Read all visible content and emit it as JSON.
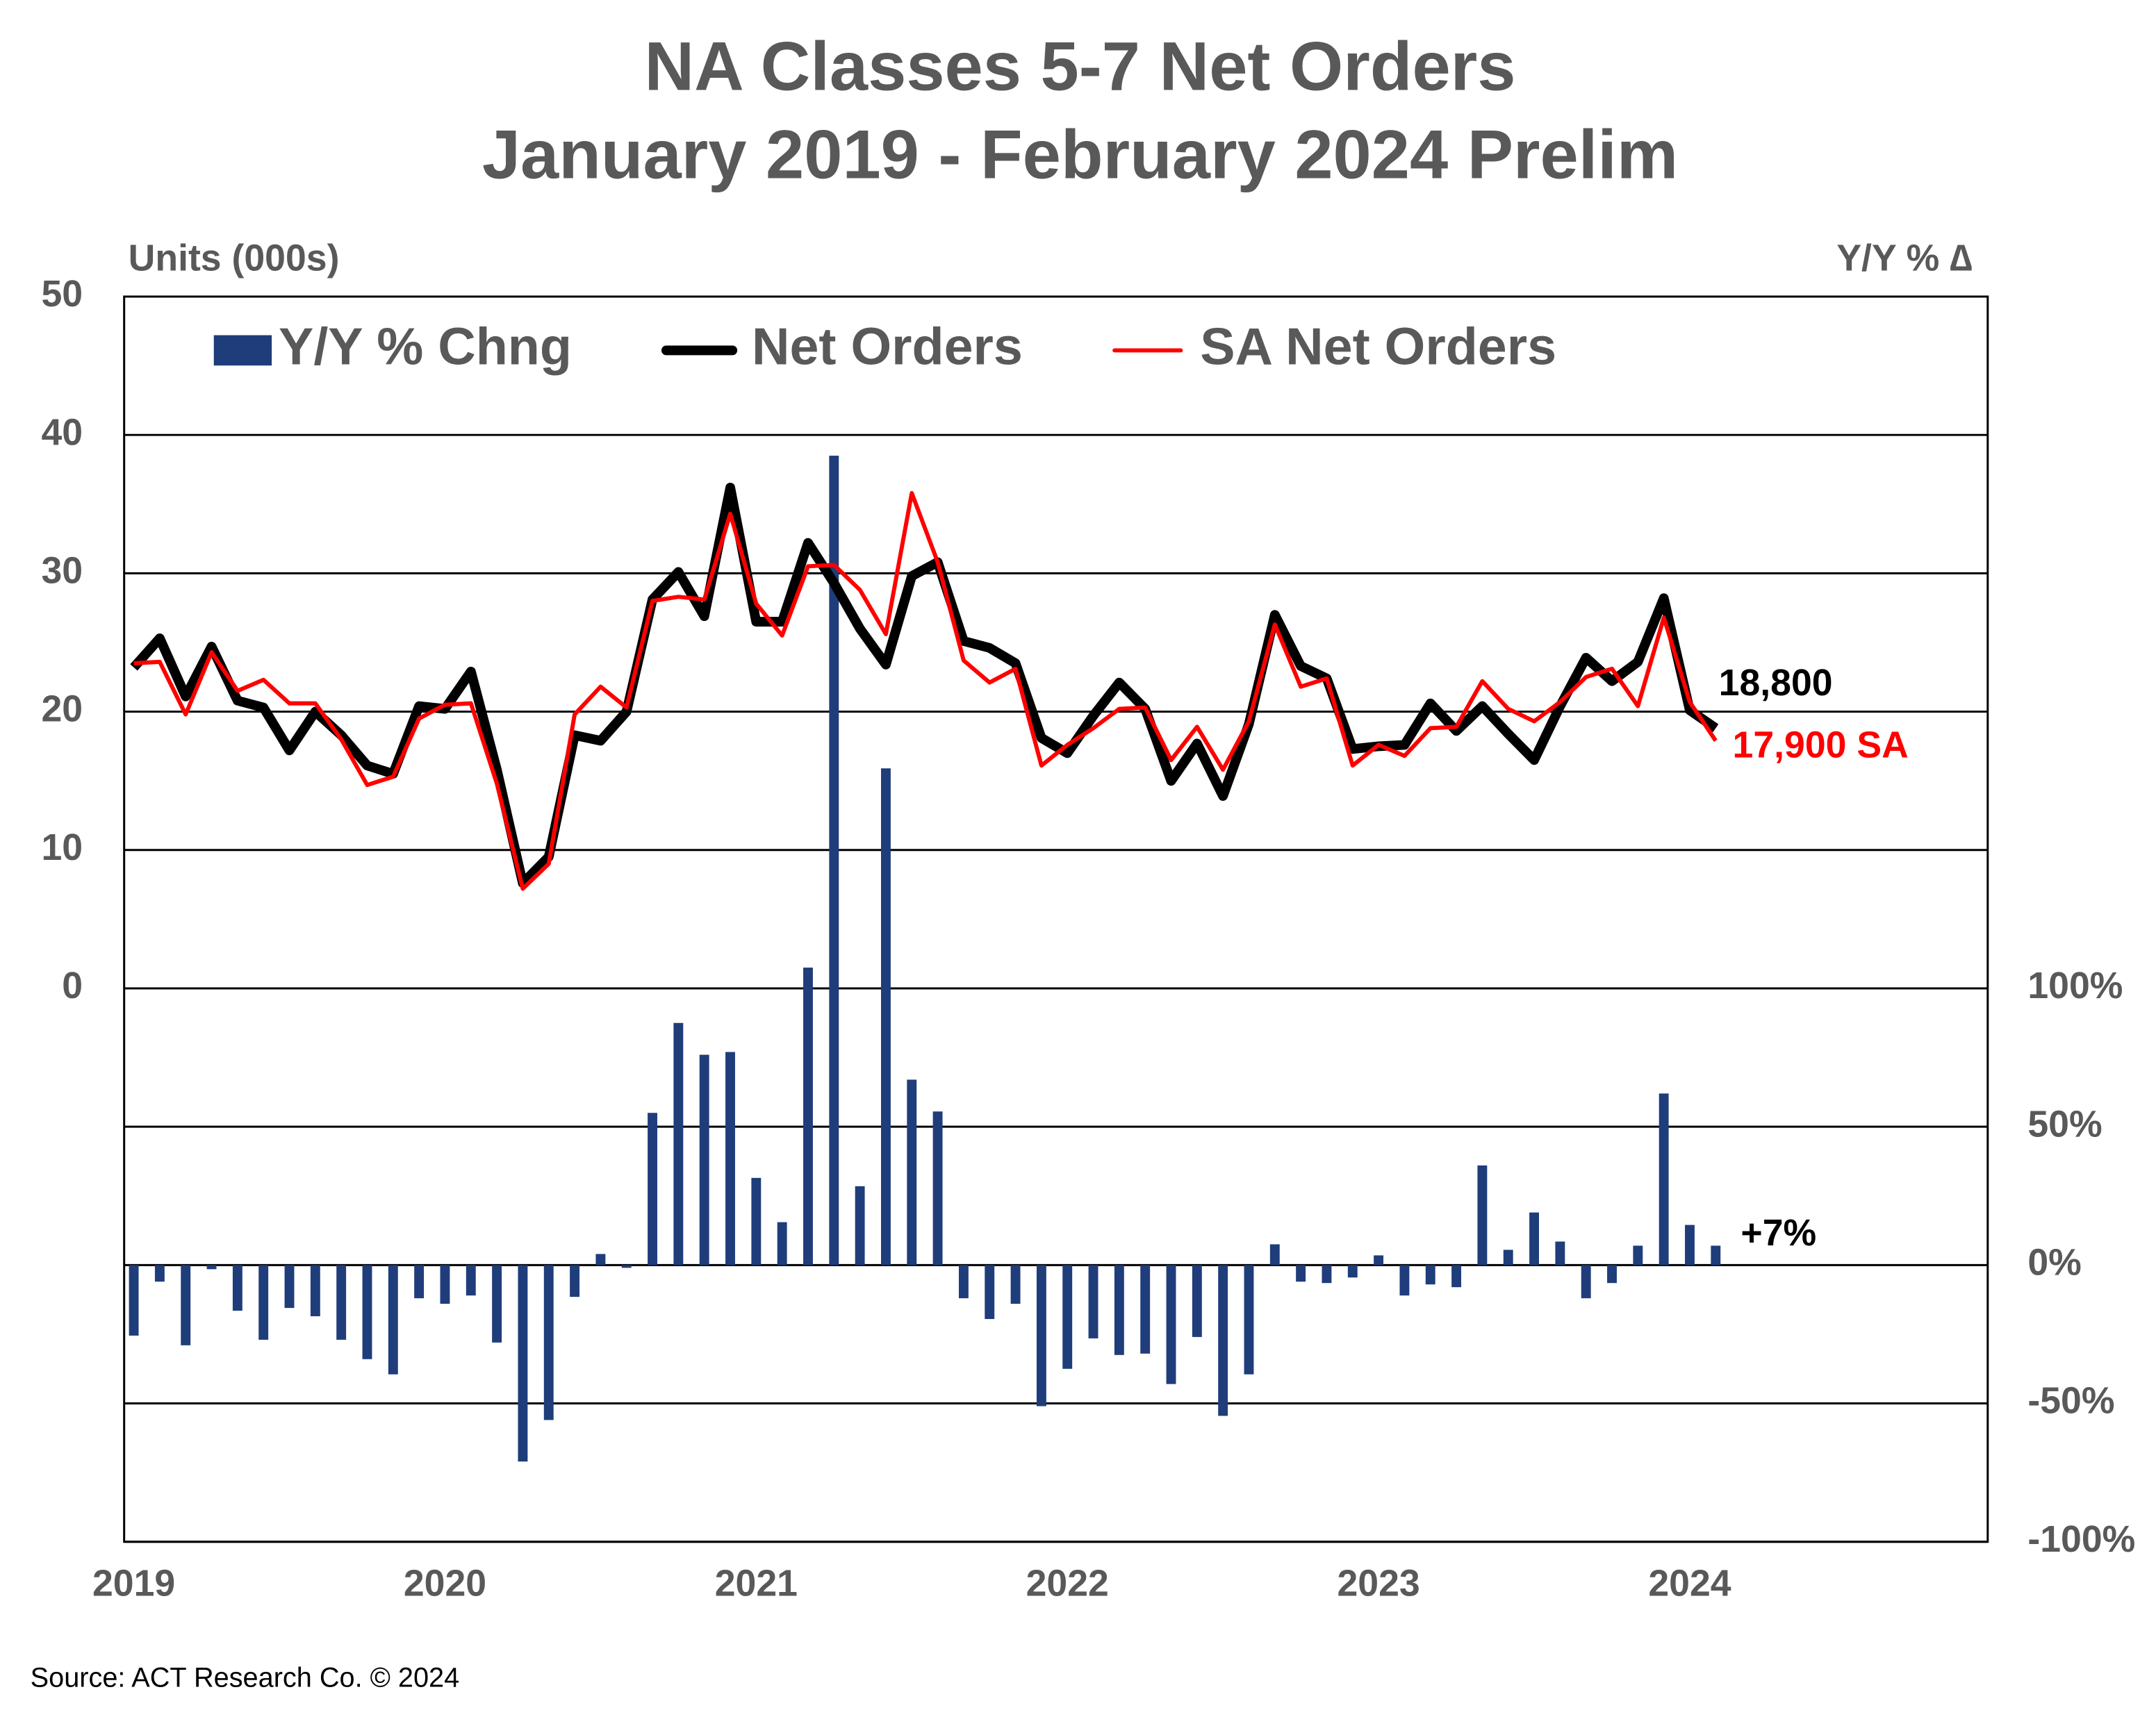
{
  "chart_data": {
    "type": "bar-line",
    "title": "NA Classes 5-7 Net Orders",
    "subtitle": "January 2019 - February 2024 Prelim",
    "y_label": "Units (000s)",
    "y2_label": "Y/Y % ∆",
    "source": "Source: ACT Research Co. © 2024",
    "categories": [
      "2019",
      null,
      null,
      null,
      null,
      null,
      null,
      null,
      null,
      null,
      null,
      null,
      "2020",
      null,
      null,
      null,
      null,
      null,
      null,
      null,
      null,
      null,
      null,
      null,
      "2021",
      null,
      null,
      null,
      null,
      null,
      null,
      null,
      null,
      null,
      null,
      null,
      "2022",
      null,
      null,
      null,
      null,
      null,
      null,
      null,
      null,
      null,
      null,
      null,
      "2023",
      null,
      null,
      null,
      null,
      null,
      null,
      null,
      null,
      null,
      null,
      null,
      "2024",
      null
    ],
    "ylim": [
      -40,
      50
    ],
    "yticks": [
      0,
      10,
      20,
      30,
      40,
      50
    ],
    "y2lim": [
      -100,
      350
    ],
    "y2ticks": [
      {
        "value": -100,
        "label": "-100%"
      },
      {
        "value": -50,
        "label": "-50%"
      },
      {
        "value": 0,
        "label": "0%"
      },
      {
        "value": 50,
        "label": "50%"
      },
      {
        "value": 100,
        "label": "100%"
      }
    ],
    "grid": true,
    "series": [
      {
        "name": "Y/Y % Chng",
        "type": "bar",
        "axis": "y2",
        "color": "#1f3d7a",
        "values": [
          -25.5,
          -6,
          -29,
          -1.5,
          -16.5,
          -27,
          -15.5,
          -18.5,
          -27,
          -34,
          -39.5,
          -12,
          -14,
          -11,
          -28,
          -71,
          -56,
          -11.5,
          4,
          -1,
          55,
          87.5,
          76,
          77,
          31.5,
          15.5,
          107.5,
          292.5,
          28.5,
          179.5,
          67,
          55.5,
          -12,
          -19.5,
          -14,
          -51,
          -37.5,
          -26.5,
          -32.5,
          -32,
          -43,
          -26,
          -54.5,
          -39.5,
          7.5,
          -6,
          -6.5,
          -4.5,
          3.5,
          -11,
          -7,
          -8,
          36,
          5.5,
          19,
          8.5,
          -12,
          -6.5,
          7,
          62,
          14.5,
          7
        ]
      },
      {
        "name": "Net Orders",
        "type": "line",
        "color": "#000000",
        "width": 7,
        "values": [
          23.2,
          25.3,
          21.1,
          24.7,
          20.8,
          20.3,
          17.2,
          20.0,
          18.3,
          16.1,
          15.5,
          20.4,
          20.2,
          22.9,
          15.8,
          7.6,
          9.5,
          18.3,
          17.9,
          20.0,
          28.1,
          30.1,
          26.9,
          36.2,
          26.5,
          26.5,
          32.2,
          29.3,
          26.0,
          23.4,
          29.8,
          30.8,
          25.1,
          24.6,
          23.5,
          18.1,
          17.0,
          19.7,
          22.1,
          20.2,
          15.0,
          17.7,
          13.9,
          19.1,
          27.0,
          23.3,
          22.4,
          17.3,
          17.5,
          17.6,
          20.6,
          18.6,
          20.4,
          18.4,
          16.5,
          20.4,
          23.9,
          22.2,
          23.6,
          28.2,
          20.1,
          18.8
        ]
      },
      {
        "name": "SA Net Orders",
        "type": "line",
        "color": "#ff0000",
        "width": 3,
        "values": [
          23.5,
          23.6,
          19.8,
          24.3,
          21.5,
          22.3,
          20.6,
          20.6,
          18.0,
          14.7,
          15.3,
          19.5,
          20.5,
          20.6,
          14.8,
          7.2,
          9.0,
          19.8,
          21.8,
          20.3,
          28.0,
          28.3,
          28.1,
          34.3,
          27.8,
          25.5,
          30.5,
          30.6,
          28.8,
          25.6,
          35.8,
          30.8,
          23.7,
          22.1,
          23.1,
          16.1,
          17.6,
          18.8,
          20.2,
          20.3,
          16.5,
          18.9,
          15.8,
          19.3,
          26.3,
          21.8,
          22.4,
          16.1,
          17.6,
          16.8,
          18.8,
          18.9,
          22.2,
          20.2,
          19.3,
          20.7,
          22.5,
          23.1,
          20.4,
          26.8,
          20.7,
          17.9
        ]
      }
    ],
    "annotations": [
      "18,800",
      "17,900 SA",
      "+7%"
    ]
  }
}
